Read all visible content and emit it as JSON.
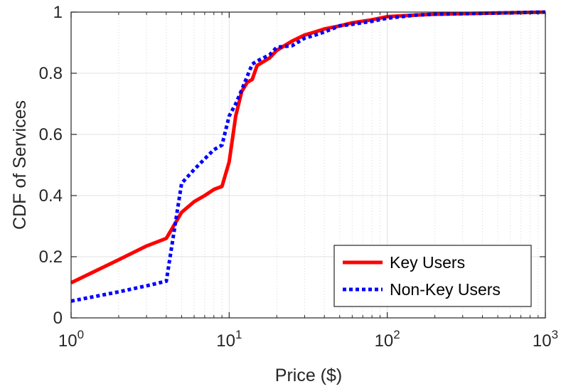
{
  "chart_data": {
    "type": "line",
    "xlabel": "Price ($)",
    "ylabel": "CDF of Services",
    "x_scale": "log",
    "xlim": [
      1,
      1000
    ],
    "ylim": [
      0,
      1
    ],
    "grid": true,
    "legend_position": "bottom-right",
    "x_ticks": [
      {
        "value": 1,
        "base": "10",
        "exp": "0"
      },
      {
        "value": 10,
        "base": "10",
        "exp": "1"
      },
      {
        "value": 100,
        "base": "10",
        "exp": "2"
      },
      {
        "value": 1000,
        "base": "10",
        "exp": "3"
      }
    ],
    "y_ticks": [
      {
        "value": 0,
        "label": "0"
      },
      {
        "value": 0.2,
        "label": "0.2"
      },
      {
        "value": 0.4,
        "label": "0.4"
      },
      {
        "value": 0.6,
        "label": "0.6"
      },
      {
        "value": 0.8,
        "label": "0.8"
      },
      {
        "value": 1,
        "label": "1"
      }
    ],
    "series": [
      {
        "name": "Key Users",
        "color": "#ff0000",
        "style": "solid",
        "x": [
          1,
          2,
          3,
          4,
          5,
          6,
          7,
          8,
          9,
          10,
          11,
          12,
          13,
          14,
          15,
          18,
          20,
          25,
          30,
          35,
          40,
          50,
          60,
          80,
          100,
          150,
          200,
          500,
          1000
        ],
        "y": [
          0.115,
          0.19,
          0.235,
          0.26,
          0.345,
          0.38,
          0.4,
          0.42,
          0.43,
          0.51,
          0.66,
          0.74,
          0.77,
          0.78,
          0.825,
          0.85,
          0.875,
          0.905,
          0.925,
          0.935,
          0.945,
          0.955,
          0.965,
          0.975,
          0.985,
          0.99,
          0.993,
          0.997,
          1.0
        ]
      },
      {
        "name": "Non-Key Users",
        "color": "#0000ff",
        "style": "dotted",
        "x": [
          1,
          2,
          3,
          4,
          5,
          6,
          7,
          8,
          9,
          10,
          11,
          12,
          13,
          14,
          15,
          18,
          20,
          25,
          30,
          35,
          40,
          50,
          60,
          80,
          100,
          150,
          200,
          500,
          1000
        ],
        "y": [
          0.055,
          0.085,
          0.105,
          0.12,
          0.44,
          0.485,
          0.52,
          0.55,
          0.565,
          0.66,
          0.7,
          0.745,
          0.79,
          0.83,
          0.84,
          0.86,
          0.885,
          0.89,
          0.915,
          0.925,
          0.935,
          0.955,
          0.96,
          0.97,
          0.98,
          0.99,
          0.993,
          0.997,
          1.0
        ]
      }
    ]
  }
}
